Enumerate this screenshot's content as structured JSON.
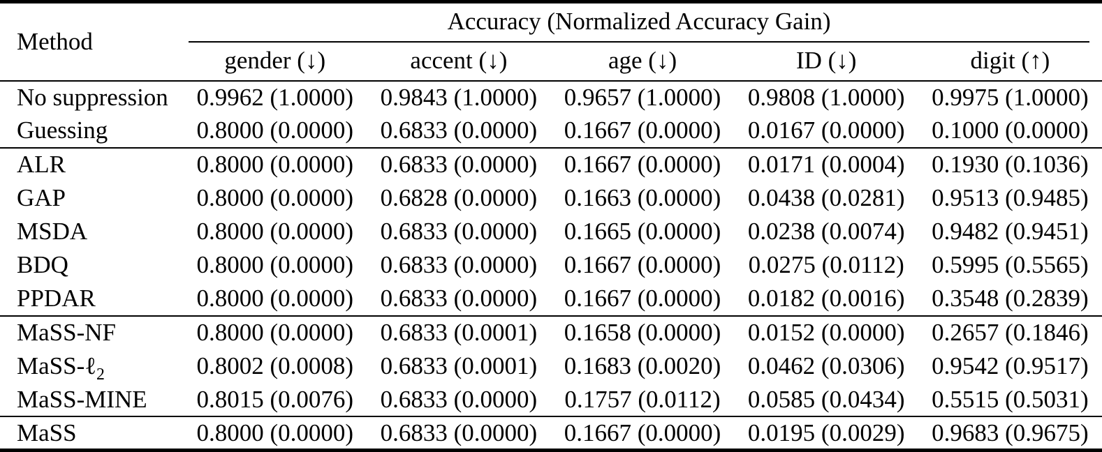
{
  "colors": {
    "background": "#ffffff",
    "text": "#000000",
    "rule": "#000000"
  },
  "table": {
    "method_header": "Method",
    "span_header": "Accuracy (Normalized Accuracy Gain)",
    "sub_headers": [
      "gender (↓)",
      "accent (↓)",
      "age (↓)",
      "ID (↓)",
      "digit (↑)"
    ],
    "groups": [
      {
        "rows": [
          {
            "method": "No suppression",
            "values": [
              "0.9962 (1.0000)",
              "0.9843 (1.0000)",
              "0.9657 (1.0000)",
              "0.9808 (1.0000)",
              "0.9975 (1.0000)"
            ]
          },
          {
            "method": "Guessing",
            "values": [
              "0.8000 (0.0000)",
              "0.6833 (0.0000)",
              "0.1667 (0.0000)",
              "0.0167 (0.0000)",
              "0.1000 (0.0000)"
            ]
          }
        ]
      },
      {
        "rows": [
          {
            "method": "ALR",
            "values": [
              "0.8000 (0.0000)",
              "0.6833 (0.0000)",
              "0.1667 (0.0000)",
              "0.0171 (0.0004)",
              "0.1930 (0.1036)"
            ]
          },
          {
            "method": "GAP",
            "values": [
              "0.8000 (0.0000)",
              "0.6828 (0.0000)",
              "0.1663 (0.0000)",
              "0.0438 (0.0281)",
              "0.9513 (0.9485)"
            ]
          },
          {
            "method": "MSDA",
            "values": [
              "0.8000 (0.0000)",
              "0.6833 (0.0000)",
              "0.1665 (0.0000)",
              "0.0238 (0.0074)",
              "0.9482 (0.9451)"
            ]
          },
          {
            "method": "BDQ",
            "values": [
              "0.8000 (0.0000)",
              "0.6833 (0.0000)",
              "0.1667 (0.0000)",
              "0.0275 (0.0112)",
              "0.5995 (0.5565)"
            ]
          },
          {
            "method": "PPDAR",
            "values": [
              "0.8000 (0.0000)",
              "0.6833 (0.0000)",
              "0.1667 (0.0000)",
              "0.0182 (0.0016)",
              "0.3548 (0.2839)"
            ]
          }
        ]
      },
      {
        "rows": [
          {
            "method": "MaSS-NF",
            "values": [
              "0.8000 (0.0000)",
              "0.6833 (0.0001)",
              "0.1658 (0.0000)",
              "0.0152 (0.0000)",
              "0.2657 (0.1846)"
            ]
          },
          {
            "method": "MaSS-ℓ",
            "method_sub": "2",
            "values": [
              "0.8002 (0.0008)",
              "0.6833 (0.0001)",
              "0.1683 (0.0020)",
              "0.0462 (0.0306)",
              "0.9542 (0.9517)"
            ]
          },
          {
            "method": "MaSS-MINE",
            "values": [
              "0.8015 (0.0076)",
              "0.6833 (0.0000)",
              "0.1757 (0.0112)",
              "0.0585 (0.0434)",
              "0.5515 (0.5031)"
            ]
          }
        ]
      },
      {
        "rows": [
          {
            "method": "MaSS",
            "values": [
              "0.8000 (0.0000)",
              "0.6833 (0.0000)",
              "0.1667 (0.0000)",
              "0.0195 (0.0029)",
              "0.9683 (0.9675)"
            ]
          }
        ]
      }
    ]
  }
}
